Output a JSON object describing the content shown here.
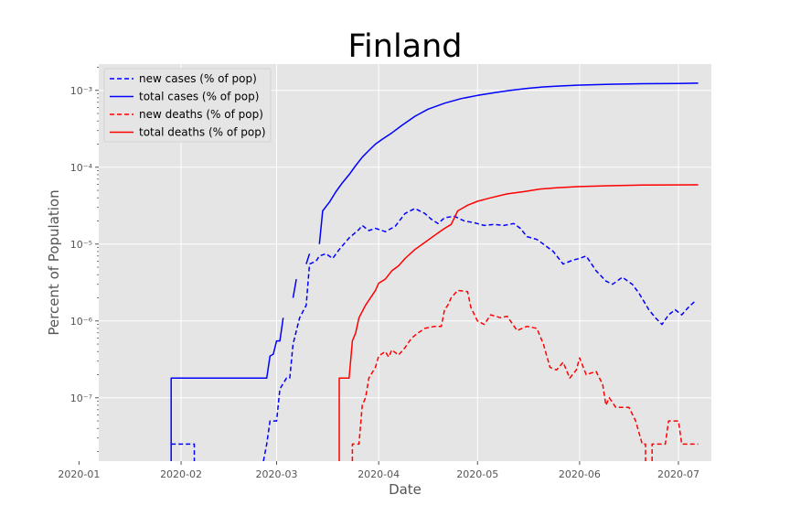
{
  "chart_data": {
    "type": "line",
    "title": "Finland",
    "xlabel": "Date",
    "ylabel": "Percent of Population",
    "yscale": "log",
    "ylim": [
      1.5e-08,
      0.0022
    ],
    "xlim": [
      "2020-01-07",
      "2020-07-11"
    ],
    "x_ticks": [
      "2020-01-01",
      "2020-02-01",
      "2020-03-01",
      "2020-04-01",
      "2020-05-01",
      "2020-06-01",
      "2020-07-01"
    ],
    "x_tick_labels": [
      "2020-01",
      "2020-02",
      "2020-03",
      "2020-04",
      "2020-05",
      "2020-06",
      "2020-07"
    ],
    "y_ticks": [
      1e-07,
      1e-06,
      1e-05,
      0.0001,
      0.001
    ],
    "y_tick_labels": [
      "10⁻⁷",
      "10⁻⁶",
      "10⁻⁵",
      "10⁻⁴",
      "10⁻³"
    ],
    "grid": true,
    "background": "#e5e5e5",
    "legend_position": "upper-left",
    "series": [
      {
        "name": "new cases (% of pop)",
        "color": "#0000ff",
        "style": "dashed",
        "points": [
          [
            "2020-01-29",
            2.5e-08
          ],
          [
            "2020-01-30",
            2.5e-08
          ],
          [
            "2020-02-05",
            2.5e-08
          ],
          [
            "2020-02-05",
            1.5e-08
          ],
          null,
          [
            "2020-02-26",
            1.5e-08
          ],
          [
            "2020-02-27",
            2.5e-08
          ],
          [
            "2020-02-28",
            5e-08
          ],
          [
            "2020-03-01",
            5e-08
          ],
          [
            "2020-03-02",
            1.3e-07
          ],
          [
            "2020-03-04",
            1.8e-07
          ],
          [
            "2020-03-05",
            1.8e-07
          ],
          [
            "2020-03-06",
            5e-07
          ],
          [
            "2020-03-08",
            1.1e-06
          ],
          [
            "2020-03-10",
            1.6e-06
          ],
          [
            "2020-03-11",
            5.5e-06
          ],
          [
            "2020-03-13",
            6e-06
          ],
          [
            "2020-03-14",
            7e-06
          ],
          [
            "2020-03-16",
            7.5e-06
          ],
          [
            "2020-03-18",
            6.5e-06
          ],
          [
            "2020-03-20",
            8.5e-06
          ],
          [
            "2020-03-23",
            1.2e-05
          ],
          [
            "2020-03-26",
            1.55e-05
          ],
          [
            "2020-03-27",
            1.75e-05
          ],
          [
            "2020-03-29",
            1.5e-05
          ],
          [
            "2020-03-31",
            1.6e-05
          ],
          [
            "2020-04-03",
            1.45e-05
          ],
          [
            "2020-04-06",
            1.7e-05
          ],
          [
            "2020-04-09",
            2.5e-05
          ],
          [
            "2020-04-12",
            2.9e-05
          ],
          [
            "2020-04-15",
            2.5e-05
          ],
          [
            "2020-04-17",
            2.1e-05
          ],
          [
            "2020-04-19",
            1.85e-05
          ],
          [
            "2020-04-21",
            2.2e-05
          ],
          [
            "2020-04-24",
            2.3e-05
          ],
          [
            "2020-04-27",
            2e-05
          ],
          [
            "2020-04-30",
            1.9e-05
          ],
          [
            "2020-05-03",
            1.75e-05
          ],
          [
            "2020-05-06",
            1.8e-05
          ],
          [
            "2020-05-09",
            1.75e-05
          ],
          [
            "2020-05-12",
            1.85e-05
          ],
          [
            "2020-05-14",
            1.6e-05
          ],
          [
            "2020-05-16",
            1.25e-05
          ],
          [
            "2020-05-19",
            1.15e-05
          ],
          [
            "2020-05-21",
            1e-05
          ],
          [
            "2020-05-24",
            8e-06
          ],
          [
            "2020-05-27",
            5.5e-06
          ],
          [
            "2020-05-30",
            6.2e-06
          ],
          [
            "2020-06-01",
            6.5e-06
          ],
          [
            "2020-06-03",
            7e-06
          ],
          [
            "2020-06-06",
            4.5e-06
          ],
          [
            "2020-06-09",
            3.3e-06
          ],
          [
            "2020-06-11",
            3e-06
          ],
          [
            "2020-06-14",
            3.7e-06
          ],
          [
            "2020-06-17",
            3e-06
          ],
          [
            "2020-06-19",
            2.3e-06
          ],
          [
            "2020-06-22",
            1.4e-06
          ],
          [
            "2020-06-24",
            1.1e-06
          ],
          [
            "2020-06-26",
            9e-07
          ],
          [
            "2020-06-28",
            1.2e-06
          ],
          [
            "2020-06-30",
            1.4e-06
          ],
          [
            "2020-07-02",
            1.2e-06
          ],
          [
            "2020-07-04",
            1.5e-06
          ],
          [
            "2020-07-06",
            1.8e-06
          ]
        ]
      },
      {
        "name": "total cases (% of pop)",
        "color": "#0000ff",
        "style": "solid",
        "points": [
          [
            "2020-01-29",
            1.5e-08
          ],
          [
            "2020-01-29",
            1.8e-07
          ],
          [
            "2020-02-27",
            1.8e-07
          ],
          [
            "2020-02-28",
            3.5e-07
          ],
          [
            "2020-02-29",
            3.7e-07
          ],
          [
            "2020-03-01",
            5.5e-07
          ],
          [
            "2020-03-02",
            5.5e-07
          ],
          [
            "2020-03-03",
            1.1e-06
          ],
          null,
          [
            "2020-03-06",
            2e-06
          ],
          [
            "2020-03-07",
            3.5e-06
          ],
          null,
          [
            "2020-03-10",
            5.5e-06
          ],
          [
            "2020-03-11",
            7.5e-06
          ],
          null,
          [
            "2020-03-14",
            1e-05
          ],
          [
            "2020-03-15",
            2.7e-05
          ],
          [
            "2020-03-17",
            3.5e-05
          ],
          [
            "2020-03-19",
            4.8e-05
          ],
          [
            "2020-03-21",
            6.3e-05
          ],
          [
            "2020-03-23",
            8e-05
          ],
          [
            "2020-03-25",
            0.000105
          ],
          [
            "2020-03-27",
            0.000135
          ],
          [
            "2020-03-29",
            0.000165
          ],
          [
            "2020-03-31",
            0.0002
          ],
          [
            "2020-04-02",
            0.00023
          ],
          [
            "2020-04-05",
            0.00028
          ],
          [
            "2020-04-08",
            0.00035
          ],
          [
            "2020-04-12",
            0.00046
          ],
          [
            "2020-04-16",
            0.00057
          ],
          [
            "2020-04-21",
            0.00068
          ],
          [
            "2020-04-26",
            0.00078
          ],
          [
            "2020-05-01",
            0.00086
          ],
          [
            "2020-05-06",
            0.00093
          ],
          [
            "2020-05-11",
            0.001
          ],
          [
            "2020-05-16",
            0.00106
          ],
          [
            "2020-05-21",
            0.00111
          ],
          [
            "2020-05-26",
            0.00114
          ],
          [
            "2020-06-01",
            0.00117
          ],
          [
            "2020-06-10",
            0.0012
          ],
          [
            "2020-06-20",
            0.00122
          ],
          [
            "2020-07-01",
            0.00123
          ],
          [
            "2020-07-07",
            0.00124
          ]
        ]
      },
      {
        "name": "new deaths (% of pop)",
        "color": "#ff0000",
        "style": "dashed",
        "points": [
          [
            "2020-03-24",
            1.5e-08
          ],
          [
            "2020-03-24",
            2.5e-08
          ],
          [
            "2020-03-26",
            2.5e-08
          ],
          [
            "2020-03-27",
            8e-08
          ],
          [
            "2020-03-28",
            1e-07
          ],
          [
            "2020-03-29",
            1.8e-07
          ],
          [
            "2020-03-31",
            2.5e-07
          ],
          [
            "2020-04-01",
            3.5e-07
          ],
          [
            "2020-04-03",
            4e-07
          ],
          [
            "2020-04-04",
            3.4e-07
          ],
          [
            "2020-04-05",
            4.2e-07
          ],
          [
            "2020-04-07",
            3.6e-07
          ],
          [
            "2020-04-09",
            4.5e-07
          ],
          [
            "2020-04-11",
            6e-07
          ],
          [
            "2020-04-13",
            7e-07
          ],
          [
            "2020-04-15",
            8e-07
          ],
          [
            "2020-04-18",
            8.5e-07
          ],
          [
            "2020-04-20",
            8.5e-07
          ],
          [
            "2020-04-21",
            1.4e-06
          ],
          [
            "2020-04-22",
            1.6e-06
          ],
          [
            "2020-04-23",
            2e-06
          ],
          [
            "2020-04-25",
            2.5e-06
          ],
          [
            "2020-04-28",
            2.4e-06
          ],
          [
            "2020-04-29",
            1.5e-06
          ],
          [
            "2020-05-01",
            1e-06
          ],
          [
            "2020-05-03",
            9e-07
          ],
          [
            "2020-05-05",
            1.2e-06
          ],
          [
            "2020-05-08",
            1.1e-06
          ],
          [
            "2020-05-10",
            1.15e-06
          ],
          [
            "2020-05-13",
            7.5e-07
          ],
          [
            "2020-05-16",
            8.5e-07
          ],
          [
            "2020-05-19",
            8e-07
          ],
          [
            "2020-05-21",
            5e-07
          ],
          [
            "2020-05-23",
            2.5e-07
          ],
          [
            "2020-05-25",
            2.3e-07
          ],
          [
            "2020-05-27",
            2.9e-07
          ],
          [
            "2020-05-29",
            1.8e-07
          ],
          [
            "2020-05-31",
            2.3e-07
          ],
          [
            "2020-06-01",
            3.3e-07
          ],
          [
            "2020-06-03",
            2e-07
          ],
          [
            "2020-06-06",
            2.2e-07
          ],
          [
            "2020-06-08",
            1.5e-07
          ],
          [
            "2020-06-09",
            8e-08
          ],
          [
            "2020-06-10",
            1e-07
          ],
          [
            "2020-06-12",
            7.5e-08
          ],
          [
            "2020-06-14",
            7.5e-08
          ],
          [
            "2020-06-16",
            7.5e-08
          ],
          [
            "2020-06-18",
            5e-08
          ],
          [
            "2020-06-20",
            2.5e-08
          ],
          [
            "2020-06-21",
            2.5e-08
          ],
          [
            "2020-06-21",
            1.5e-08
          ],
          null,
          [
            "2020-06-23",
            1.5e-08
          ],
          [
            "2020-06-23",
            2.5e-08
          ],
          [
            "2020-06-27",
            2.5e-08
          ],
          [
            "2020-06-28",
            5e-08
          ],
          [
            "2020-07-01",
            5e-08
          ],
          [
            "2020-07-02",
            2.5e-08
          ],
          [
            "2020-07-07",
            2.5e-08
          ]
        ]
      },
      {
        "name": "total deaths (% of pop)",
        "color": "#ff0000",
        "style": "solid",
        "points": [
          [
            "2020-03-20",
            1.5e-08
          ],
          [
            "2020-03-20",
            1.8e-07
          ],
          [
            "2020-03-23",
            1.8e-07
          ],
          [
            "2020-03-24",
            5.5e-07
          ],
          [
            "2020-03-25",
            7e-07
          ],
          [
            "2020-03-26",
            1.1e-06
          ],
          [
            "2020-03-28",
            1.6e-06
          ],
          [
            "2020-03-31",
            2.5e-06
          ],
          [
            "2020-04-01",
            3.1e-06
          ],
          [
            "2020-04-03",
            3.5e-06
          ],
          [
            "2020-04-05",
            4.5e-06
          ],
          [
            "2020-04-07",
            5.2e-06
          ],
          [
            "2020-04-09",
            6.5e-06
          ],
          [
            "2020-04-12",
            8.5e-06
          ],
          [
            "2020-04-15",
            1.05e-05
          ],
          [
            "2020-04-18",
            1.3e-05
          ],
          [
            "2020-04-21",
            1.6e-05
          ],
          [
            "2020-04-23",
            1.8e-05
          ],
          [
            "2020-04-25",
            2.7e-05
          ],
          [
            "2020-04-28",
            3.2e-05
          ],
          [
            "2020-05-01",
            3.6e-05
          ],
          [
            "2020-05-05",
            4e-05
          ],
          [
            "2020-05-10",
            4.5e-05
          ],
          [
            "2020-05-15",
            4.8e-05
          ],
          [
            "2020-05-20",
            5.2e-05
          ],
          [
            "2020-05-25",
            5.4e-05
          ],
          [
            "2020-06-01",
            5.6e-05
          ],
          [
            "2020-06-10",
            5.75e-05
          ],
          [
            "2020-06-20",
            5.85e-05
          ],
          [
            "2020-07-07",
            5.9e-05
          ]
        ]
      }
    ]
  }
}
